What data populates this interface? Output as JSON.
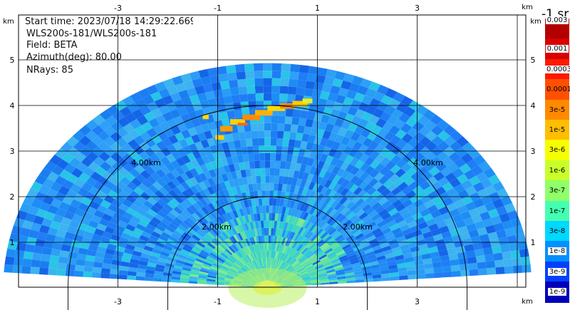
{
  "plot": {
    "info": {
      "start_time": "Start time: 2023/07/18 14:29:22.669",
      "instrument": "WLS200s-181/WLS200s-181",
      "field": "Field: BETA",
      "azimuth": "Azimuth(deg): 80.00",
      "nrays": "NRays: 85"
    },
    "x_axis": {
      "unit_top": "km",
      "unit_bottom": "km",
      "ticks": [
        "-3",
        "-1",
        "1",
        "3"
      ],
      "tick_values": [
        -3,
        -1,
        1,
        3
      ],
      "range": [
        -5,
        5
      ]
    },
    "y_axis": {
      "unit_left": "km",
      "unit_right": "km",
      "ticks": [
        "1",
        "2",
        "3",
        "4",
        "5"
      ],
      "tick_values": [
        1,
        2,
        3,
        4,
        5
      ],
      "range": [
        0,
        5.8
      ]
    },
    "range_rings": [
      {
        "label": "2.00km",
        "km": 2
      },
      {
        "label": "4.00km",
        "km": 4
      }
    ],
    "colorbar": {
      "units": "-1 sr",
      "labels": [
        "0.003",
        "0.001",
        "0.0003",
        "0.0001",
        "3e-5",
        "1e-5",
        "3e-6",
        "1e-6",
        "3e-7",
        "1e-7",
        "3e-8",
        "1e-8",
        "3e-9",
        "1e-9"
      ],
      "colors": [
        "#b30000",
        "#d90000",
        "#ff1a00",
        "#ff5000",
        "#ff8a00",
        "#ffbe00",
        "#f5ff00",
        "#c8ff2a",
        "#8fff6a",
        "#45ffb0",
        "#00d8ff",
        "#0090ff",
        "#0040ff",
        "#0000b8"
      ]
    },
    "palette": {
      "beam_dominant": "#1e8cf5",
      "beam_near": "#2ad8b5",
      "feature": "#ffcc00"
    }
  }
}
